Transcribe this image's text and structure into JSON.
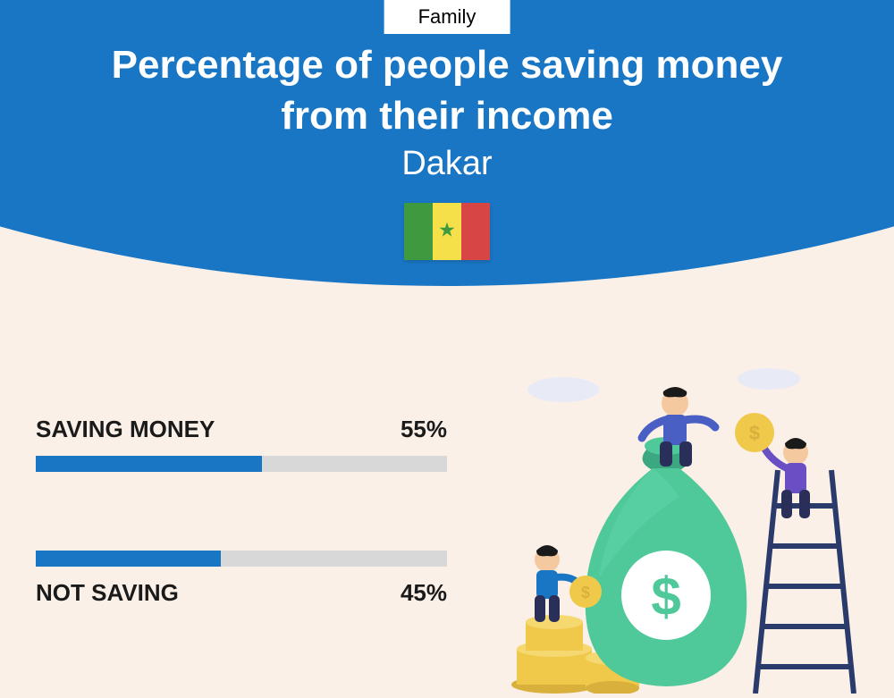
{
  "badge": "Family",
  "title_line1": "Percentage of people saving money",
  "title_line2": "from their income",
  "subtitle": "Dakar",
  "flag": {
    "stripe_colors": [
      "#3f9a3f",
      "#f5e04a",
      "#d84545"
    ],
    "star_color": "#3f9a3f"
  },
  "bars": [
    {
      "label": "SAVING MONEY",
      "value": 55,
      "display": "55%",
      "label_pos": "top"
    },
    {
      "label": "NOT SAVING",
      "value": 45,
      "display": "45%",
      "label_pos": "bottom"
    }
  ],
  "colors": {
    "header_bg": "#1976c5",
    "page_bg": "#faf0e8",
    "bar_fill": "#1976c5",
    "bar_track": "#d8d8d8",
    "title_text": "#ffffff",
    "label_text": "#1a1a1a"
  },
  "illustration": {
    "bag_color": "#4fc99a",
    "bag_dark": "#3ba882",
    "coin_color": "#f0c94a",
    "coin_dark": "#d9b03c",
    "person1_shirt": "#4a5fc4",
    "person1_pants": "#2a2f5a",
    "person2_shirt": "#1976c5",
    "person2_pants": "#2a2f5a",
    "person3_shirt": "#6a4fc4",
    "person3_pants": "#2a2f5a",
    "ladder": "#2a3a6a",
    "skin": "#f5c9a0",
    "hair": "#1a1a1a",
    "cloud": "#e8ebf5"
  }
}
